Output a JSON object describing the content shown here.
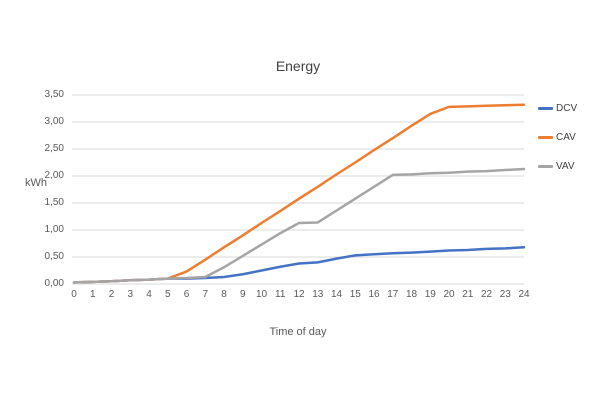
{
  "title": "Energy",
  "chart_data": {
    "type": "line",
    "title": "Energy",
    "xlabel": "Time of day",
    "ylabel": "kWh",
    "x": [
      0,
      1,
      2,
      3,
      4,
      5,
      6,
      7,
      8,
      9,
      10,
      11,
      12,
      13,
      14,
      15,
      16,
      17,
      18,
      19,
      20,
      21,
      22,
      23,
      24
    ],
    "series": [
      {
        "name": "DCV",
        "color": "#4472C4",
        "values": [
          0.03,
          0.04,
          0.05,
          0.07,
          0.08,
          0.1,
          0.1,
          0.11,
          0.13,
          0.18,
          0.25,
          0.32,
          0.38,
          0.4,
          0.47,
          0.53,
          0.55,
          0.57,
          0.58,
          0.6,
          0.62,
          0.63,
          0.65,
          0.66,
          0.68
        ]
      },
      {
        "name": "CAV",
        "color": "#ED7D31",
        "values": [
          0.03,
          0.04,
          0.05,
          0.07,
          0.08,
          0.1,
          0.23,
          0.45,
          0.68,
          0.9,
          1.13,
          1.35,
          1.58,
          1.8,
          2.03,
          2.25,
          2.48,
          2.7,
          2.93,
          3.15,
          3.28,
          3.29,
          3.3,
          3.31,
          3.32
        ]
      },
      {
        "name": "VAV",
        "color": "#A5A5A5",
        "values": [
          0.03,
          0.04,
          0.05,
          0.07,
          0.08,
          0.1,
          0.11,
          0.13,
          0.31,
          0.52,
          0.73,
          0.94,
          1.13,
          1.14,
          1.36,
          1.58,
          1.8,
          2.02,
          2.03,
          2.05,
          2.06,
          2.08,
          2.09,
          2.11,
          2.13
        ]
      }
    ],
    "ylim": [
      0,
      3.5
    ],
    "y_tick_step": 0.5,
    "y_tick_labels": [
      "0,00",
      "0,50",
      "1,00",
      "1,50",
      "2,00",
      "2,50",
      "3,00",
      "3,50"
    ],
    "grid": "horizontal",
    "legend_position": "right",
    "decimal_separator": ","
  },
  "colors": {
    "gridline": "#D9D9D9",
    "title_text": "#404040",
    "axis_text": "#595959",
    "background": "#FFFFFF"
  }
}
